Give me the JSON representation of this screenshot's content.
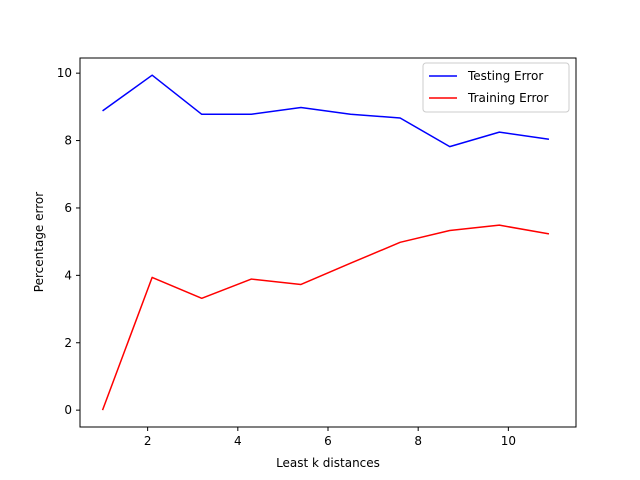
{
  "chart_data": {
    "type": "line",
    "title": "",
    "xlabel": "Least k distances",
    "ylabel": "Percentage error",
    "xlim": [
      0.5,
      11.5
    ],
    "ylim": [
      -0.5,
      10.45
    ],
    "xticks": [
      2,
      4,
      6,
      8,
      10
    ],
    "yticks": [
      0,
      2,
      4,
      6,
      8,
      10
    ],
    "grid": false,
    "legend_position": "top-right",
    "x": [
      1,
      2.1,
      3.2,
      4.3,
      5.4,
      6.5,
      7.6,
      8.7,
      9.8,
      10.9
    ],
    "series": [
      {
        "name": "Testing Error",
        "color": "#0000ff",
        "values": [
          8.88,
          9.94,
          8.78,
          8.78,
          8.98,
          8.78,
          8.67,
          7.82,
          8.25,
          8.04
        ]
      },
      {
        "name": "Training Error",
        "color": "#ff0000",
        "values": [
          0.0,
          3.94,
          3.32,
          3.89,
          3.73,
          4.36,
          4.98,
          5.33,
          5.49,
          5.23
        ]
      }
    ]
  }
}
